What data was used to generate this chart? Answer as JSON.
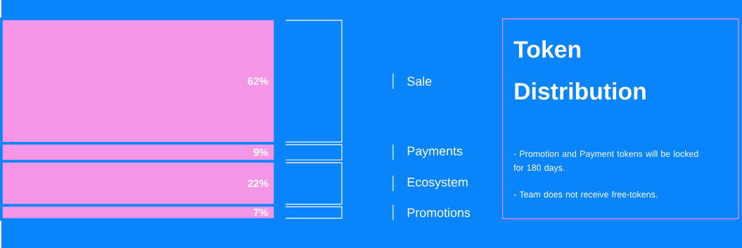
{
  "chart_data": {
    "type": "bar",
    "stacked": true,
    "legend": false,
    "title": "Token Distribution",
    "categories": [
      null
    ],
    "series": [
      {
        "name": "Promotions",
        "color": "#f596e6",
        "values": [
          7
        ],
        "value_labels": [
          "7%"
        ]
      },
      {
        "name": "Ecosystem",
        "color": "#f596e6",
        "values": [
          22
        ],
        "value_labels": [
          "22%"
        ]
      },
      {
        "name": "Payments",
        "color": "#f596e6",
        "values": [
          9
        ],
        "value_labels": [
          "9%"
        ]
      },
      {
        "name": "Sale",
        "color": "#f596e6",
        "values": [
          62
        ],
        "value_labels": [
          "62%"
        ]
      }
    ],
    "annotations": [
      "- Promotion and Payment tokens will be locked for 180 days.",
      "- Team does not receive free-tokens."
    ]
  }
}
